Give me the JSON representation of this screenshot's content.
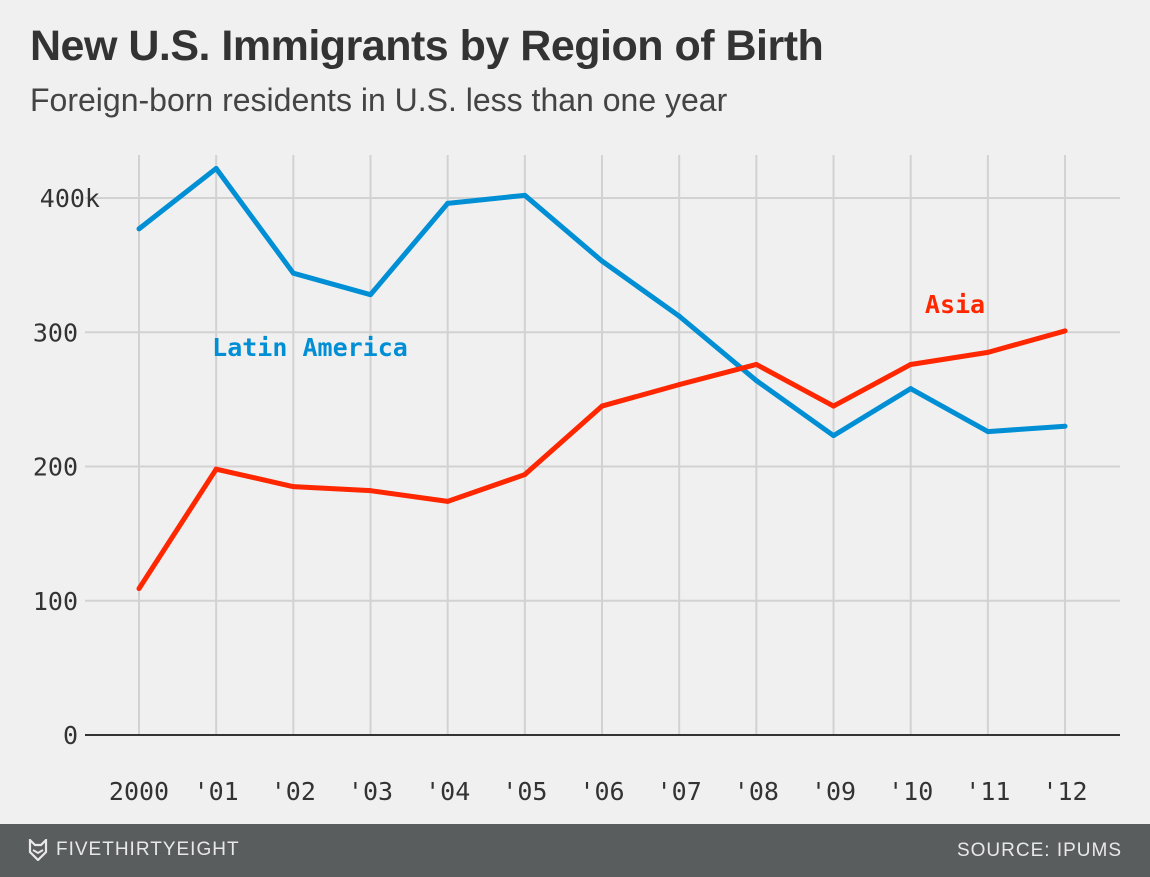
{
  "chart_data": {
    "type": "line",
    "title": "New U.S. Immigrants by Region of Birth",
    "subtitle": "Foreign-born residents in U.S. less than one year",
    "x": [
      2000,
      2001,
      2002,
      2003,
      2004,
      2005,
      2006,
      2007,
      2008,
      2009,
      2010,
      2011,
      2012
    ],
    "xtick_labels": [
      "2000",
      "'01",
      "'02",
      "'03",
      "'04",
      "'05",
      "'06",
      "'07",
      "'08",
      "'09",
      "'10",
      "'11",
      "'12"
    ],
    "yticks": [
      0,
      100,
      200,
      300,
      400
    ],
    "ytick_labels": [
      "0",
      "100",
      "200",
      "300",
      "400k"
    ],
    "ylim": [
      0,
      430
    ],
    "ylabel": "",
    "xlabel": "",
    "grid": true,
    "series": [
      {
        "name": "Latin America",
        "color": "#008fd5",
        "values": [
          377,
          422,
          344,
          328,
          396,
          402,
          353,
          312,
          264,
          223,
          258,
          226,
          230
        ]
      },
      {
        "name": "Asia",
        "color": "#ff2700",
        "values": [
          109,
          198,
          185,
          182,
          174,
          194,
          245,
          261,
          276,
          245,
          276,
          285,
          301
        ]
      }
    ]
  },
  "footer": {
    "brand": "FIVETHIRTYEIGHT",
    "source": "SOURCE: IPUMS"
  }
}
